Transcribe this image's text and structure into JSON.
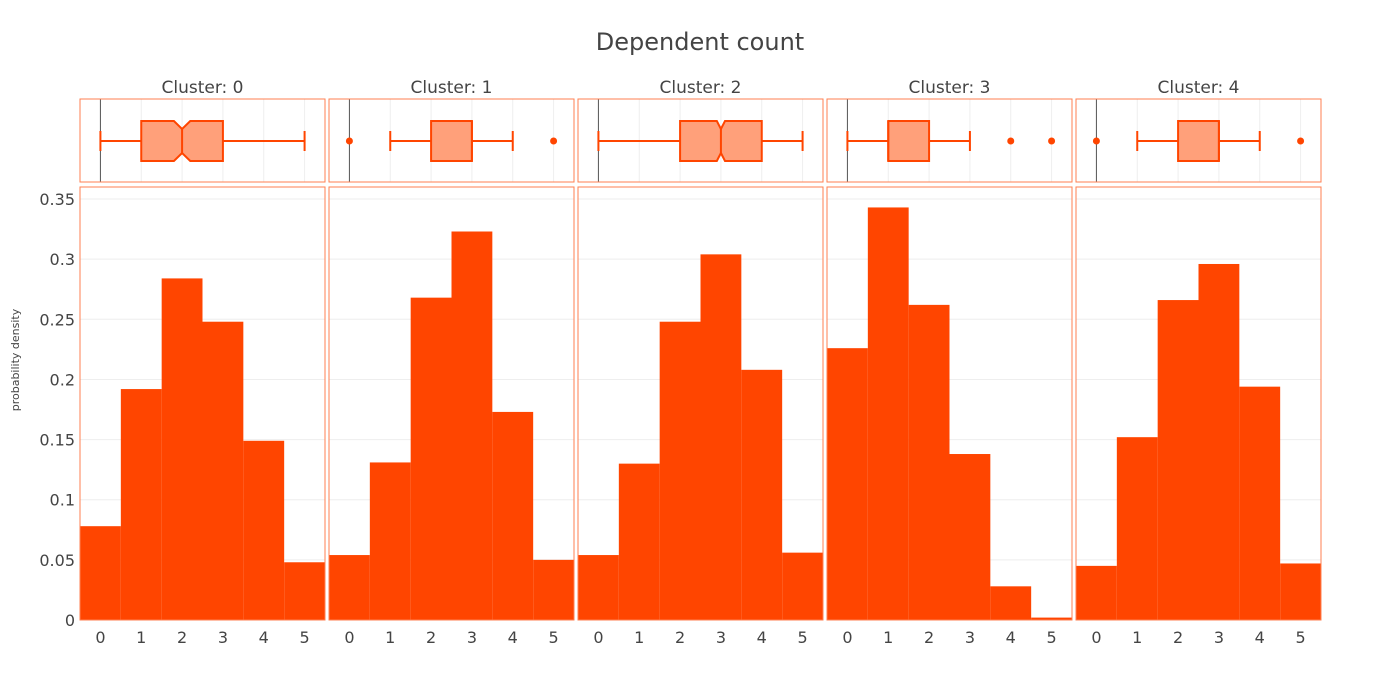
{
  "chart_data": {
    "type": "bar",
    "title": "Dependent count",
    "ylabel": "probability density",
    "xlabel": "",
    "ylim": [
      0,
      0.36
    ],
    "xlim": [
      -0.5,
      5.5
    ],
    "x_ticks": [
      "0",
      "1",
      "2",
      "3",
      "4",
      "5"
    ],
    "y_ticks": [
      "0",
      "0.05",
      "0.1",
      "0.15",
      "0.2",
      "0.25",
      "0.3",
      "0.35"
    ],
    "y_tick_values": [
      0,
      0.05,
      0.1,
      0.15,
      0.2,
      0.25,
      0.3,
      0.35
    ],
    "categories": [
      0,
      1,
      2,
      3,
      4,
      5
    ],
    "colors": {
      "bar": "#ff4500",
      "box_fill": "#ffa07a",
      "box_line": "#ff4500",
      "frame": "#ff7f50",
      "grid": "#eeeeee"
    },
    "panels": [
      {
        "label": "Cluster: 0",
        "values": [
          0.078,
          0.192,
          0.284,
          0.248,
          0.149,
          0.048
        ],
        "box": {
          "min": 0,
          "q1": 1,
          "median": 2,
          "q3": 3,
          "max": 5,
          "notch": [
            1.8,
            2.2
          ],
          "outliers": []
        }
      },
      {
        "label": "Cluster: 1",
        "values": [
          0.054,
          0.131,
          0.268,
          0.323,
          0.173,
          0.05
        ],
        "box": {
          "min": 1,
          "q1": 2,
          "median": 3,
          "q3": 3,
          "max": 4,
          "notch": null,
          "outliers": [
            0,
            5
          ]
        }
      },
      {
        "label": "Cluster: 2",
        "values": [
          0.054,
          0.13,
          0.248,
          0.304,
          0.208,
          0.056
        ],
        "box": {
          "min": 0,
          "q1": 2,
          "median": 3,
          "q3": 4,
          "max": 5,
          "notch": [
            2.9,
            3.1
          ],
          "outliers": []
        }
      },
      {
        "label": "Cluster: 3",
        "values": [
          0.226,
          0.343,
          0.262,
          0.138,
          0.028,
          0.002
        ],
        "box": {
          "min": 0,
          "q1": 1,
          "median": 1,
          "q3": 2,
          "max": 3,
          "notch": null,
          "outliers": [
            4,
            5
          ]
        }
      },
      {
        "label": "Cluster: 4",
        "values": [
          0.045,
          0.152,
          0.266,
          0.296,
          0.194,
          0.047
        ],
        "box": {
          "min": 1,
          "q1": 2,
          "median": 3,
          "q3": 3,
          "max": 4,
          "notch": null,
          "outliers": [
            0,
            5
          ]
        }
      }
    ]
  }
}
